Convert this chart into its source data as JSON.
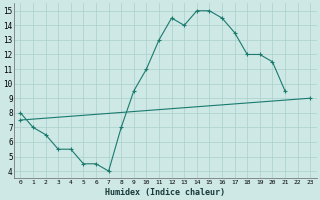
{
  "line1_x": [
    0,
    1,
    2,
    3,
    4,
    5,
    6,
    7,
    8,
    9,
    10,
    11,
    12,
    13,
    14,
    15,
    16,
    17,
    18,
    19,
    20,
    21,
    22,
    23
  ],
  "line1_y": [
    8,
    7,
    6.5,
    5.5,
    5.5,
    4.5,
    4.5,
    4,
    7,
    9.5,
    11,
    13,
    14.5,
    14,
    15,
    15,
    14.5,
    13.5,
    12,
    12,
    11.5,
    9.5,
    null,
    null
  ],
  "line2_x": [
    0,
    23
  ],
  "line2_y": [
    7.5,
    9.0
  ],
  "xlim": [
    -0.5,
    23.5
  ],
  "ylim": [
    3.5,
    15.5
  ],
  "yticks": [
    4,
    5,
    6,
    7,
    8,
    9,
    10,
    11,
    12,
    13,
    14,
    15
  ],
  "xlabel": "Humidex (Indice chaleur)",
  "line_color": "#1a7a6e",
  "bg_color": "#cde8e5",
  "grid_color": "#aad0cc"
}
